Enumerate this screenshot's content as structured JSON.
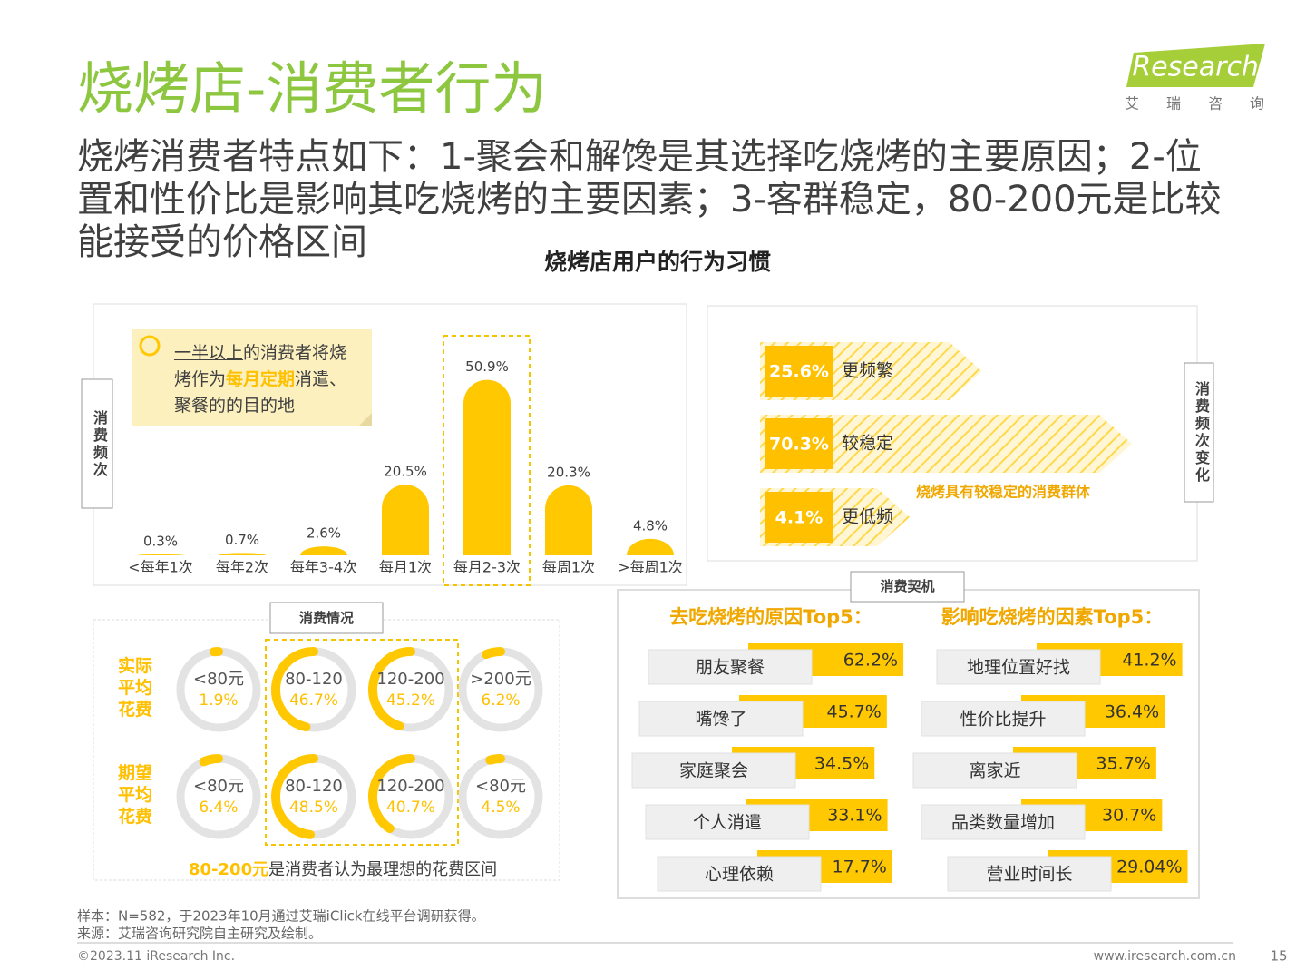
{
  "header": {
    "title": "烧烤店-消费者行为",
    "logo": "iResearch",
    "logo_subtitle": "艾瑞咨询"
  },
  "summary": "烧烤消费者特点如下：1-聚会和解馋是其选择吃烧烤的主要原因；2-位置和性价比是影响其吃烧烤的主要因素；3-客群稳定，80-200元是比较能接受的价格区间",
  "section_title": "烧烤店用户的行为习惯",
  "chart_data": [
    {
      "type": "bar",
      "axis_label": "消费频次",
      "color": "#ffc800",
      "categories": [
        "<每年1次",
        "每年2次",
        "每年3-4次",
        "每月1次",
        "每月2-3次",
        "每周1次",
        ">每周1次"
      ],
      "values": [
        0.3,
        0.7,
        2.6,
        20.5,
        50.9,
        20.3,
        4.8
      ],
      "value_labels": [
        "0.3%",
        "0.7%",
        "2.6%",
        "20.5%",
        "50.9%",
        "20.3%",
        "4.8%"
      ],
      "note": [
        "一半以上",
        "的消费者将烧烤作为",
        "每月定期",
        "消遣、聚餐的的目的地"
      ]
    },
    {
      "type": "arrow",
      "axis_label": "消费频次变化",
      "color": "#ffc000",
      "categories": [
        "更频繁",
        "较稳定",
        "更低频"
      ],
      "values": [
        25.6,
        70.3,
        4.1
      ],
      "value_labels": [
        "25.6%",
        "70.3%",
        "4.1%"
      ],
      "note": "烧烤具有较稳定的消费群体"
    },
    {
      "type": "donut",
      "label": "消费情况",
      "color": "#ffc800",
      "series": [
        {
          "name": "实际平均花费",
          "categories": [
            "<80元",
            "80-120",
            "120-200",
            ">200元"
          ],
          "values": [
            1.9,
            46.7,
            45.2,
            6.2
          ],
          "value_labels": [
            "1.9%",
            "46.7%",
            "45.2%",
            "6.2%"
          ]
        },
        {
          "name": "期望平均花费",
          "categories": [
            "<80元",
            "80-120",
            "120-200",
            "<80元"
          ],
          "values": [
            6.4,
            48.5,
            40.7,
            4.5
          ],
          "value_labels": [
            "6.4%",
            "48.5%",
            "40.7%",
            "4.5%"
          ]
        }
      ],
      "note": [
        "80-200元",
        "是消费者认为最理想的花费区间"
      ]
    },
    {
      "type": "hbar",
      "label": "消费契机",
      "color": "#ffc800",
      "panels": [
        {
          "title": "去吃烧烤的原因Top5：",
          "categories": [
            "朋友聚餐",
            "嘴馋了",
            "家庭聚会",
            "个人消遣",
            "心理依赖"
          ],
          "values": [
            62.2,
            45.7,
            34.5,
            33.1,
            17.7
          ],
          "value_labels": [
            "62.2%",
            "45.7%",
            "34.5%",
            "33.1%",
            "17.7%"
          ]
        },
        {
          "title": "影响吃烧烤的因素Top5：",
          "categories": [
            "地理位置好找",
            "性价比提升",
            "离家近",
            "品类数量增加",
            "营业时间长"
          ],
          "values": [
            41.2,
            36.4,
            35.7,
            30.7,
            29.04
          ],
          "value_labels": [
            "41.2%",
            "36.4%",
            "35.7%",
            "30.7%",
            "29.04%"
          ]
        }
      ]
    }
  ],
  "footer": {
    "sample": "样本：N=582，于2023年10月通过艾瑞iClick在线平台调研获得。",
    "source": "来源：艾瑞咨询研究院自主研究及绘制。",
    "copyright": "©2023.11 iResearch Inc.",
    "url": "www.iresearch.com.cn",
    "page": "15"
  }
}
